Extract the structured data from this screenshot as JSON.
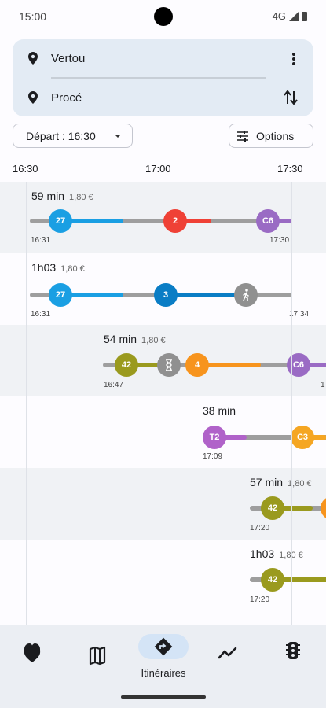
{
  "status": {
    "time": "15:00",
    "network": "4G"
  },
  "search": {
    "from": "Vertou",
    "to": "Procé"
  },
  "controls": {
    "depart_label": "Départ : 16:30",
    "options_label": "Options"
  },
  "timeline": {
    "labels": [
      "16:30",
      "17:00",
      "17:30"
    ]
  },
  "itineraries": [
    {
      "duration": "59 min",
      "price": "1,80 €",
      "start": "16:31",
      "end": "17:30",
      "legs": [
        {
          "label": "27",
          "color": "#1a9fe3"
        },
        {
          "label": "2",
          "color": "#ef4136"
        },
        {
          "label": "C6",
          "color": "#9a6bc4"
        }
      ]
    },
    {
      "duration": "1h03",
      "price": "1,80 €",
      "start": "16:31",
      "end": "17:34",
      "legs": [
        {
          "label": "27",
          "color": "#1a9fe3"
        },
        {
          "label": "3",
          "color": "#0a7dc5"
        },
        {
          "label": "walk",
          "color": "#909090"
        }
      ]
    },
    {
      "duration": "54 min",
      "price": "1,80 €",
      "start": "16:47",
      "end": "1",
      "legs": [
        {
          "label": "42",
          "color": "#9a9a1e"
        },
        {
          "label": "wait",
          "color": "#909090"
        },
        {
          "label": "4",
          "color": "#f7941d"
        },
        {
          "label": "C6",
          "color": "#9a6bc4"
        }
      ]
    },
    {
      "duration": "38 min",
      "price": "",
      "start": "17:09",
      "end": "",
      "legs": [
        {
          "label": "T2",
          "color": "#b062c9"
        },
        {
          "label": "C3",
          "color": "#f5a623"
        }
      ]
    },
    {
      "duration": "57 min",
      "price": "1,80 €",
      "start": "17:20",
      "end": "",
      "legs": [
        {
          "label": "42",
          "color": "#9a9a1e"
        },
        {
          "label": "",
          "color": "#f7941d"
        }
      ]
    },
    {
      "duration": "1h03",
      "price": "1,80 €",
      "start": "17:20",
      "end": "",
      "legs": [
        {
          "label": "42",
          "color": "#9a9a1e"
        }
      ]
    }
  ],
  "nav": {
    "active_label": "Itinéraires",
    "items": [
      "heart-icon",
      "map-icon",
      "directions-icon",
      "trend-icon",
      "traffic-light-icon"
    ]
  }
}
